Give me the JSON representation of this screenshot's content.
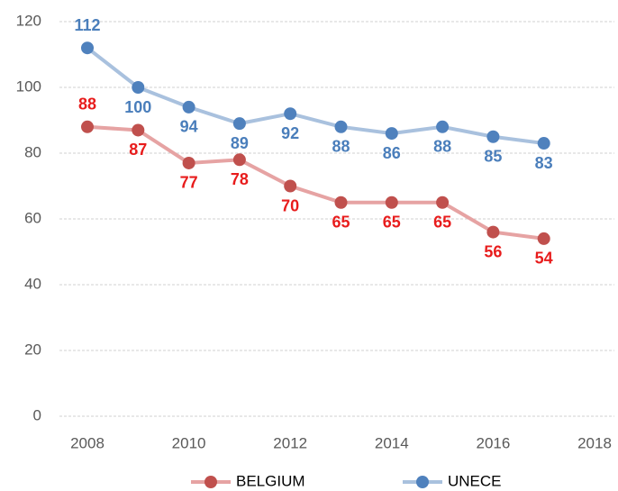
{
  "chart_data": {
    "type": "line",
    "x": [
      2008,
      2009,
      2010,
      2011,
      2012,
      2013,
      2014,
      2015,
      2016,
      2017
    ],
    "series": [
      {
        "name": "BELGIUM",
        "color": "#c0504d",
        "line_color": "#e6a3a3",
        "label_color": "#e81c1c",
        "values": [
          88,
          87,
          77,
          78,
          70,
          65,
          65,
          65,
          56,
          54
        ]
      },
      {
        "name": "UNECE",
        "color": "#4f81bd",
        "line_color": "#a9c1de",
        "label_color": "#4a7ebb",
        "values": [
          112,
          100,
          94,
          89,
          92,
          88,
          86,
          88,
          85,
          83
        ]
      }
    ],
    "xlim": [
      2008,
      2018
    ],
    "xticks": [
      2008,
      2010,
      2012,
      2014,
      2016,
      2018
    ],
    "ylim": [
      0,
      120
    ],
    "yticks": [
      0,
      20,
      40,
      60,
      80,
      100,
      120
    ],
    "grid": true,
    "legend": "bottom"
  }
}
